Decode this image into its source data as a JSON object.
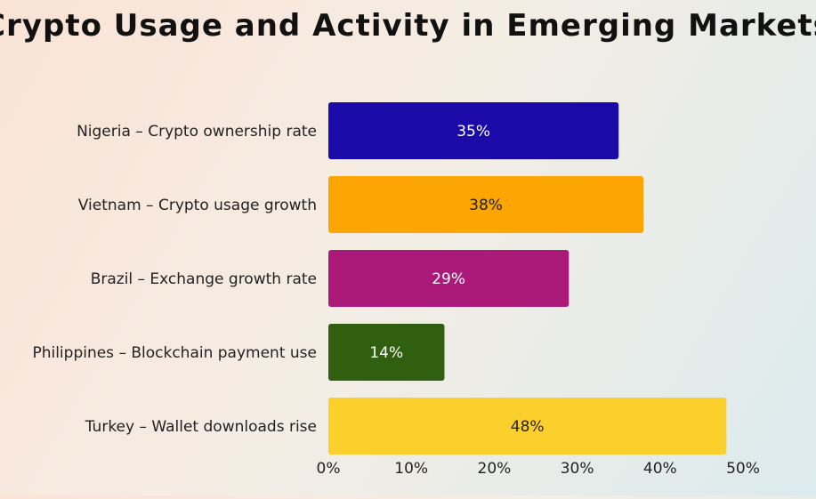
{
  "chart_data": {
    "type": "bar",
    "orientation": "horizontal",
    "title": "Crypto Usage and Activity in Emerging Markets",
    "categories": [
      "Nigeria – Crypto ownership rate",
      "Vietnam – Crypto usage growth",
      "Brazil – Exchange growth rate",
      "Philippines – Blockchain payment use",
      "Turkey – Wallet downloads rise"
    ],
    "values": [
      35,
      38,
      29,
      14,
      48
    ],
    "value_labels": [
      "35%",
      "38%",
      "29%",
      "14%",
      "48%"
    ],
    "colors": [
      "#1a0ba8",
      "#fca503",
      "#ab1a78",
      "#2f5f0f",
      "#fcd02c"
    ],
    "label_colors": [
      "#ffffff",
      "#222222",
      "#ffffff",
      "#ffffff",
      "#222222"
    ],
    "xlim": [
      0,
      50
    ],
    "x_ticks": [
      0,
      10,
      20,
      30,
      40,
      50
    ],
    "x_tick_labels": [
      "0%",
      "10%",
      "20%",
      "30%",
      "40%",
      "50%"
    ],
    "xlabel": "",
    "ylabel": "",
    "grid": false,
    "legend": "none"
  }
}
